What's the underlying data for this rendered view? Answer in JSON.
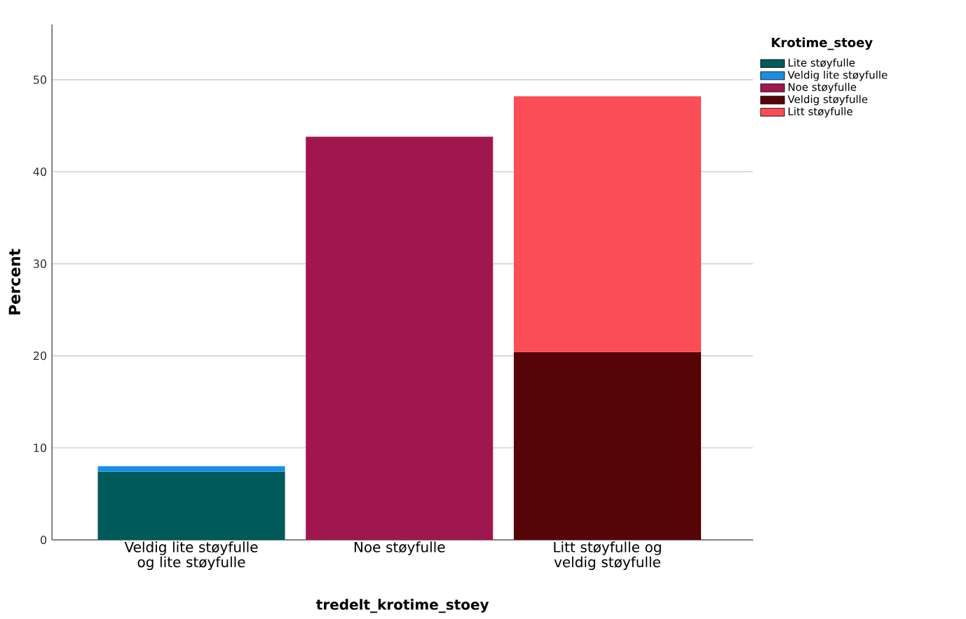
{
  "chart_data": {
    "type": "bar",
    "stacked": true,
    "xlabel": "tredelt_krotime_stoey",
    "ylabel": "Percent",
    "legend_title": "Krotime_stoey",
    "categories": [
      "Veldig lite støyfulle og lite støyfulle",
      "Noe støyfulle",
      "Litt støyfulle og veldig støyfulle"
    ],
    "series": [
      {
        "name": "Lite støyfulle",
        "color": "#005a5a",
        "values": [
          7.4,
          null,
          null
        ]
      },
      {
        "name": "Veldig lite støyfulle",
        "color": "#1a8fe3",
        "values": [
          0.6,
          null,
          null
        ]
      },
      {
        "name": "Noe støyfulle",
        "color": "#a0174f",
        "values": [
          null,
          43.8,
          null
        ]
      },
      {
        "name": "Veldig støyfulle",
        "color": "#570408",
        "values": [
          null,
          null,
          20.4
        ]
      },
      {
        "name": "Litt støyfulle",
        "color": "#fa4d56",
        "values": [
          null,
          null,
          27.8
        ]
      }
    ],
    "ylim": [
      0,
      56
    ],
    "yticks": [
      0,
      10,
      20,
      30,
      40,
      50
    ],
    "grid": "y",
    "legend": "top right"
  }
}
